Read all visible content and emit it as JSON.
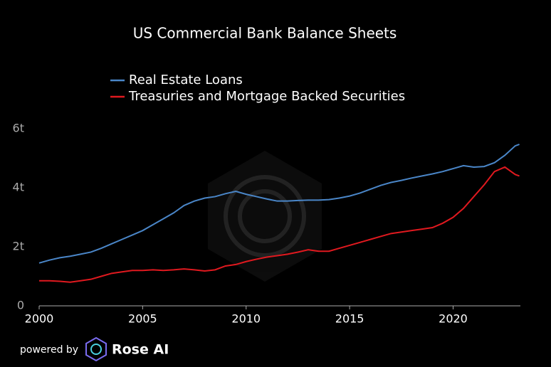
{
  "chart_data": {
    "type": "line",
    "title": "US Commercial Bank Balance Sheets",
    "footer": "powered by",
    "brand": "Rose AI",
    "x": [
      2000,
      2000.5,
      2001,
      2001.5,
      2002,
      2002.5,
      2003,
      2003.5,
      2004,
      2004.5,
      2005,
      2005.5,
      2006,
      2006.5,
      2007,
      2007.5,
      2008,
      2008.5,
      2009,
      2009.5,
      2010,
      2010.5,
      2011,
      2011.5,
      2012,
      2012.5,
      2013,
      2013.5,
      2014,
      2014.5,
      2015,
      2015.5,
      2016,
      2016.5,
      2017,
      2017.5,
      2018,
      2018.5,
      2019,
      2019.5,
      2020,
      2020.5,
      2021,
      2021.5,
      2022,
      2022.5,
      2023,
      2023.2
    ],
    "series": [
      {
        "name": "Real Estate Loans",
        "color": "#4a86c8",
        "values": [
          1.45,
          1.55,
          1.63,
          1.68,
          1.75,
          1.82,
          1.95,
          2.1,
          2.25,
          2.4,
          2.55,
          2.75,
          2.95,
          3.15,
          3.4,
          3.55,
          3.65,
          3.7,
          3.8,
          3.88,
          3.78,
          3.7,
          3.62,
          3.55,
          3.55,
          3.57,
          3.58,
          3.58,
          3.6,
          3.65,
          3.72,
          3.82,
          3.95,
          4.08,
          4.18,
          4.25,
          4.33,
          4.4,
          4.47,
          4.55,
          4.65,
          4.75,
          4.7,
          4.72,
          4.85,
          5.1,
          5.42,
          5.47
        ]
      },
      {
        "name": "Treasuries and Mortgage Backed Securities",
        "color": "#e0191f",
        "values": [
          0.85,
          0.85,
          0.83,
          0.8,
          0.85,
          0.9,
          1.0,
          1.1,
          1.15,
          1.2,
          1.2,
          1.22,
          1.2,
          1.22,
          1.25,
          1.22,
          1.18,
          1.22,
          1.35,
          1.4,
          1.5,
          1.58,
          1.65,
          1.7,
          1.75,
          1.82,
          1.9,
          1.85,
          1.85,
          1.95,
          2.05,
          2.15,
          2.25,
          2.35,
          2.45,
          2.5,
          2.55,
          2.6,
          2.65,
          2.8,
          3.0,
          3.3,
          3.7,
          4.1,
          4.55,
          4.7,
          4.45,
          4.4
        ]
      }
    ],
    "xlim": [
      2000,
      2023.25
    ],
    "xticks": [
      2000,
      2005,
      2010,
      2015,
      2020
    ],
    "ylim": [
      0,
      6
    ],
    "yticks": [
      0,
      {
        "value": 2,
        "label": "2t"
      },
      {
        "value": 4,
        "label": "4t"
      },
      {
        "value": 6,
        "label": "6t"
      }
    ],
    "grid": false
  }
}
